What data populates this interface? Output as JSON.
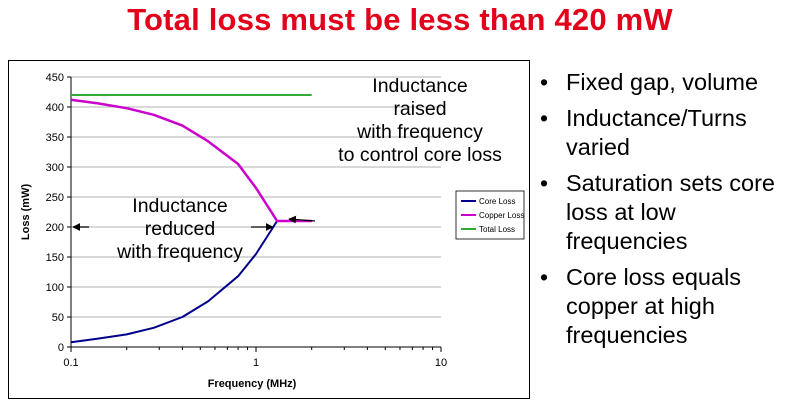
{
  "title": "Total loss must be less than 420 mW",
  "annotations": {
    "raised": [
      "Inductance",
      "raised",
      "with frequency",
      "to control core loss"
    ],
    "reduced": [
      "Inductance",
      "reduced",
      "with frequency"
    ]
  },
  "bullets": [
    "Fixed gap, volume",
    "Inductance/Turns varied",
    "Saturation sets core loss at low frequencies",
    "Core loss equals copper at high frequencies"
  ],
  "colors": {
    "title": "#e3001b",
    "core_loss": "#00008b",
    "copper_loss": "#cc00cc",
    "total_loss": "#33aa33"
  },
  "chart_data": {
    "type": "line",
    "xscale": "log",
    "xlabel": "Frequency (MHz)",
    "ylabel": "Loss (mW)",
    "xlim": [
      0.1,
      10
    ],
    "ylim": [
      0,
      450
    ],
    "xticks": [
      0.1,
      1,
      10
    ],
    "xtick_labels": [
      "0.1",
      "1",
      "10"
    ],
    "yticks": [
      0,
      50,
      100,
      150,
      200,
      250,
      300,
      350,
      400,
      450
    ],
    "grid": "horizontal",
    "legend": "right",
    "series": [
      {
        "name": "Core Loss",
        "color": "#00008b",
        "x": [
          0.1,
          0.14,
          0.2,
          0.28,
          0.4,
          0.55,
          0.8,
          1.0,
          1.3,
          1.6,
          2.0
        ],
        "y": [
          8,
          14,
          21,
          32,
          50,
          76,
          118,
          155,
          210,
          210,
          210
        ]
      },
      {
        "name": "Copper Loss",
        "color": "#cc00cc",
        "x": [
          0.1,
          0.14,
          0.2,
          0.28,
          0.4,
          0.55,
          0.8,
          1.0,
          1.3,
          1.6,
          2.0
        ],
        "y": [
          412,
          406,
          398,
          387,
          369,
          343,
          305,
          265,
          210,
          210,
          210
        ]
      },
      {
        "name": "Total Loss",
        "color": "#33aa33",
        "x": [
          0.1,
          2.0
        ],
        "y": [
          420,
          420
        ]
      }
    ]
  }
}
